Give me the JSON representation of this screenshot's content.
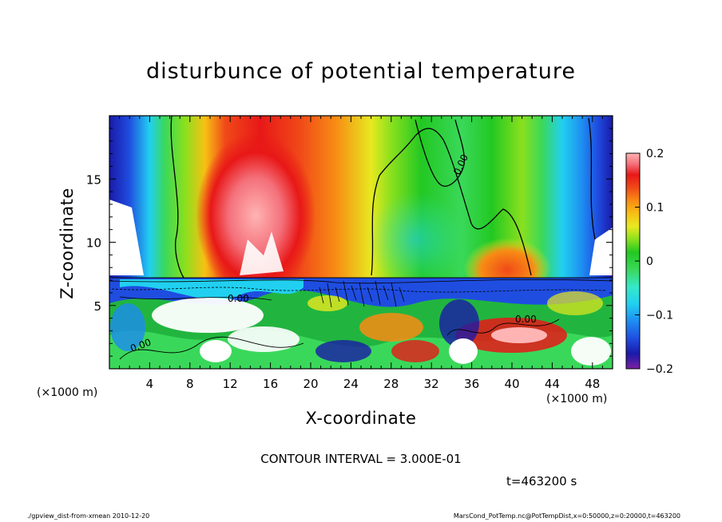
{
  "chart_data": {
    "type": "heatmap",
    "title": "disturbunce of potential temperature",
    "xlabel": "X-coordinate",
    "ylabel": "Z-coordinate",
    "x_unit_label": "(×1000 m)",
    "xlim": [
      0,
      50
    ],
    "ylim": [
      0,
      20
    ],
    "x_ticks": [
      4,
      8,
      12,
      16,
      20,
      24,
      28,
      32,
      36,
      40,
      44,
      48
    ],
    "y_ticks": [
      5,
      10,
      15
    ],
    "colorbar": {
      "range": [
        -0.2,
        0.2
      ],
      "ticks": [
        {
          "value": 0.2,
          "label": "0.2"
        },
        {
          "value": 0.1,
          "label": "0.1"
        },
        {
          "value": 0,
          "label": "0"
        },
        {
          "value": -0.1,
          "label": "−0.1"
        },
        {
          "value": -0.2,
          "label": "−0.2"
        }
      ],
      "colors": [
        "#7b1fa2",
        "#1a1aa8",
        "#1f4de0",
        "#1e8cf0",
        "#21d0f0",
        "#36e8c8",
        "#3ad85a",
        "#22c822",
        "#8ae01e",
        "#e8e820",
        "#f8c014",
        "#f88c14",
        "#f04a18",
        "#e81818",
        "#f4707a",
        "#ffb4b4"
      ]
    },
    "contour_labels": [
      "0.00",
      "0.00",
      "0.00",
      "0.00"
    ],
    "contour_interval": "CONTOUR INTERVAL = 3.000E-01",
    "time": "t=463200 s",
    "grid": false
  },
  "footer": {
    "left": "./gpview_dist-from-xmean  2010-12-20",
    "right": "MarsCond_PotTemp.nc@PotTempDist,x=0:50000,z=0:20000,t=463200"
  }
}
